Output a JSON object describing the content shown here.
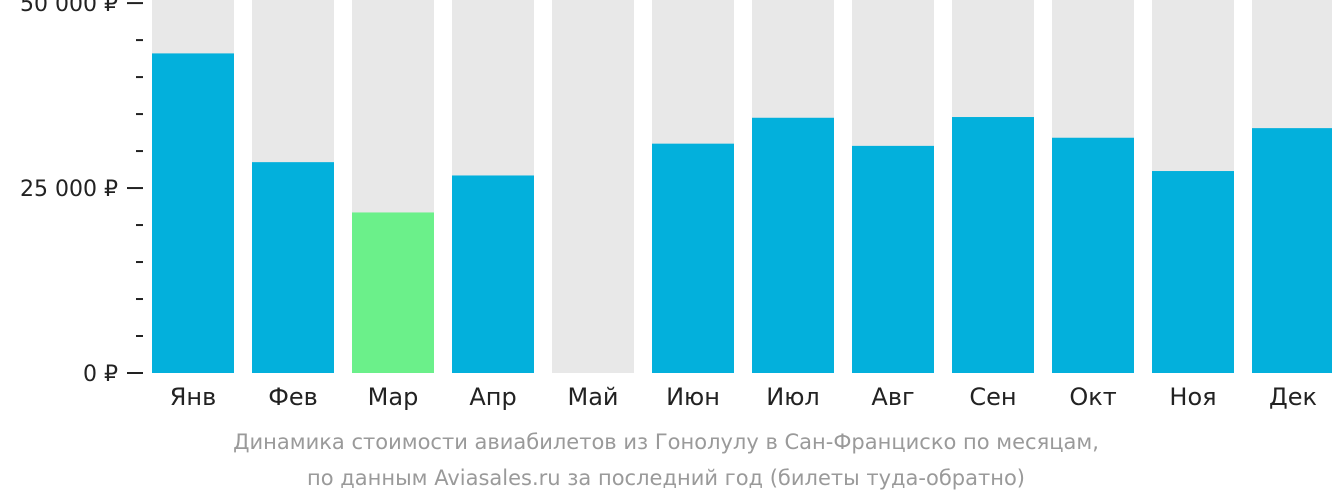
{
  "chart_data": {
    "type": "bar",
    "categories": [
      "Янв",
      "Фев",
      "Мар",
      "Апр",
      "Май",
      "Июн",
      "Июл",
      "Авг",
      "Сен",
      "Окт",
      "Ноя",
      "Дек"
    ],
    "values": [
      43200,
      28500,
      21700,
      26700,
      null,
      31000,
      34500,
      30700,
      34600,
      31800,
      27300,
      33100
    ],
    "ylim": [
      0,
      51500
    ],
    "yticks": [
      {
        "value": 0,
        "label": "0 ₽"
      },
      {
        "value": 25000,
        "label": "25 000 ₽"
      },
      {
        "value": 50000,
        "label": "50 000 ₽"
      }
    ],
    "minor_ticks": [
      5000,
      10000,
      15000,
      20000,
      30000,
      35000,
      40000,
      45000
    ],
    "highlight_index": 2,
    "grid": false,
    "legend": "none"
  },
  "colors": {
    "bar": "#03b0dc",
    "highlight": "#6bf08a",
    "background_column": "#e8e8e8",
    "axis": "#222222",
    "caption": "#9a9a9a"
  },
  "caption": {
    "line1": "Динамика стоимости авиабилетов из Гонолулу в Сан-Франциско по месяцам,",
    "line2": "по данным Aviasales.ru за последний год (билеты туда-обратно)"
  }
}
